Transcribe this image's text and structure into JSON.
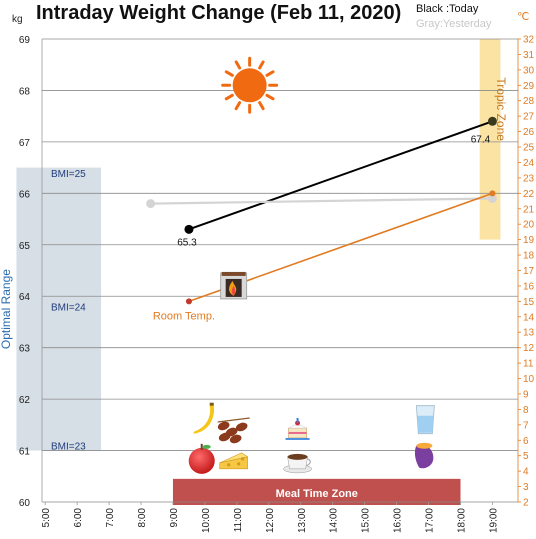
{
  "chart_data": {
    "type": "line",
    "title": "Intraday Weight Change (Feb 11, 2020)",
    "legend": {
      "today": "Black :Today",
      "yesterday": "Gray:Yesterday"
    },
    "y_left": {
      "unit": "kg",
      "range": [
        60,
        69
      ],
      "ticks": [
        "60",
        "61",
        "62",
        "63",
        "64",
        "65",
        "66",
        "67",
        "68",
        "69"
      ]
    },
    "y_right": {
      "unit": "℃",
      "range": [
        2,
        32
      ],
      "ticks": [
        "2",
        "3",
        "4",
        "5",
        "6",
        "7",
        "8",
        "9",
        "10",
        "11",
        "12",
        "13",
        "14",
        "15",
        "16",
        "17",
        "18",
        "19",
        "20",
        "21",
        "22",
        "23",
        "24",
        "25",
        "26",
        "27",
        "28",
        "29",
        "30",
        "31",
        "32"
      ]
    },
    "x_ticks": [
      "5:00",
      "6:00",
      "7:00",
      "8:00",
      "9:00",
      "10:00",
      "11:00",
      "12:00",
      "13:00",
      "14:00",
      "15:00",
      "16:00",
      "17:00",
      "18:00",
      "19:00"
    ],
    "series": [
      {
        "key": "today",
        "name": "Black :Today",
        "axis": "left",
        "color": "#000000",
        "x": [
          9.5,
          19.0
        ],
        "y": [
          65.3,
          67.4
        ],
        "labels": [
          "65.3",
          "67.4"
        ]
      },
      {
        "key": "yesterday",
        "name": "Gray:Yesterday",
        "axis": "left",
        "color": "#d4d4d4",
        "x": [
          8.3,
          19.0
        ],
        "y": [
          65.8,
          65.9
        ],
        "labels": [
          "",
          ""
        ]
      },
      {
        "key": "room_temp",
        "name": "Room Temp.",
        "axis": "right",
        "color": "#e07b22",
        "x": [
          9.5,
          19.0
        ],
        "y": [
          15.0,
          22.0
        ],
        "labels": [
          "",
          ""
        ]
      }
    ],
    "bands": [
      {
        "key": "optimal",
        "label": "Optimal Range",
        "axis": "left",
        "y_range": [
          61.0,
          66.5
        ],
        "x_range": [
          4.1,
          6.75
        ],
        "color": "#d6dee6"
      },
      {
        "key": "tropic",
        "label": "Tropic Zone",
        "axis": "right",
        "y_range": [
          19.0,
          32.0
        ],
        "x_range": [
          18.6,
          19.25
        ],
        "color": "#fbe3a4"
      },
      {
        "key": "meal",
        "label": "Meal Time Zone",
        "y_range": [
          60.0,
          60.45
        ],
        "x_range": [
          9.0,
          18.0
        ],
        "color": "#c0504d"
      }
    ],
    "bmi_labels": [
      {
        "text": "BMI=25",
        "y": 66.4
      },
      {
        "text": "BMI=24",
        "y": 63.8
      },
      {
        "text": "BMI=23",
        "y": 61.1
      }
    ],
    "annotations": {
      "room_temp_label": "Room Temp."
    },
    "icons": [
      {
        "name": "sun-icon",
        "x": 11.4,
        "y": 68.1
      },
      {
        "name": "fireplace-icon",
        "x": 10.9,
        "y": 64.2
      },
      {
        "name": "banana-icon",
        "x": 9.9,
        "y": 61.6
      },
      {
        "name": "dates-icon",
        "x": 10.9,
        "y": 61.4
      },
      {
        "name": "cake-icon",
        "x": 12.9,
        "y": 61.4
      },
      {
        "name": "water-glass-icon",
        "x": 16.9,
        "y": 61.6
      },
      {
        "name": "apple-icon",
        "x": 9.9,
        "y": 60.8
      },
      {
        "name": "cheese-icon",
        "x": 10.9,
        "y": 60.8
      },
      {
        "name": "coffee-icon",
        "x": 12.9,
        "y": 60.8
      },
      {
        "name": "sweet-potato-icon",
        "x": 16.9,
        "y": 60.9
      }
    ],
    "grid": "horizontal"
  }
}
